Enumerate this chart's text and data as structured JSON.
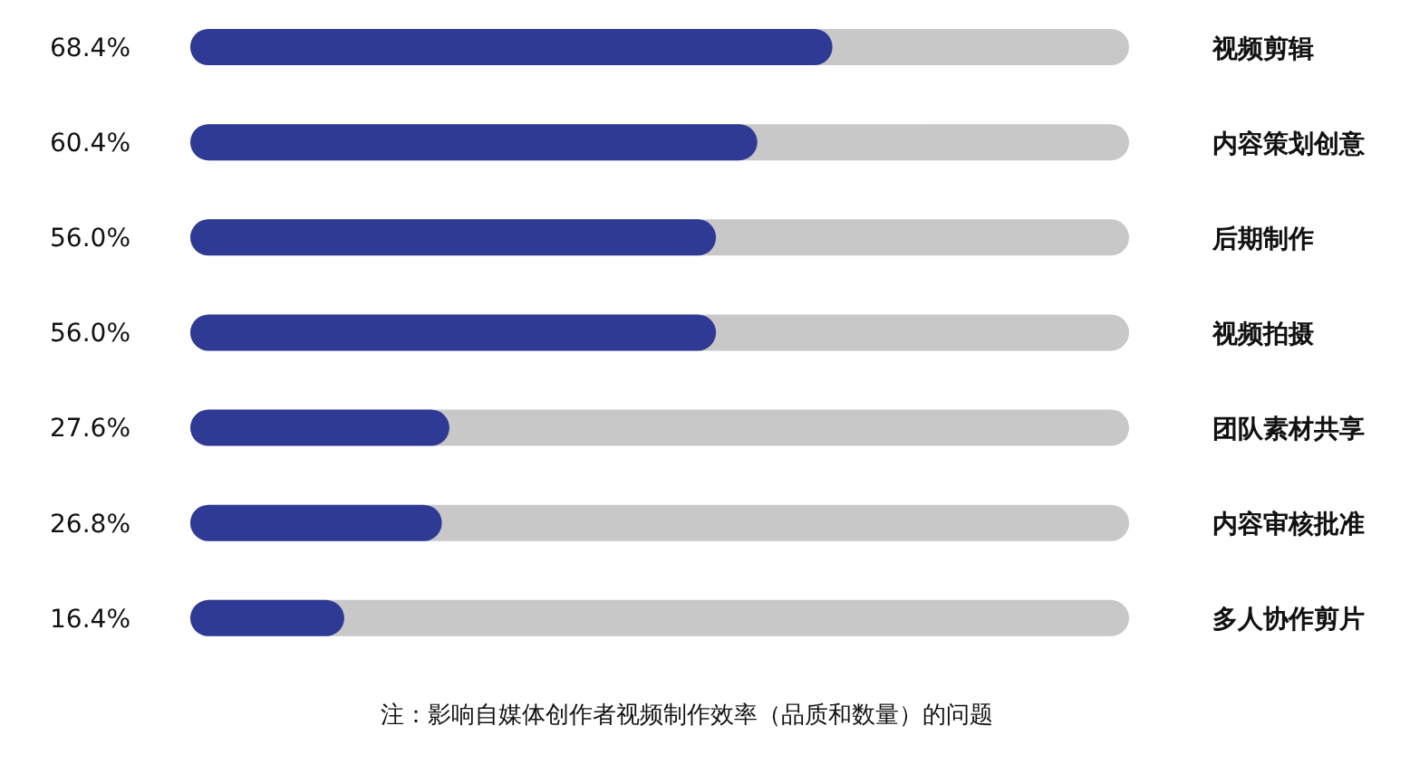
{
  "chart_data": {
    "type": "bar",
    "orientation": "horizontal",
    "categories": [
      "视频剪辑",
      "内容策划创意",
      "后期制作",
      "视频拍摄",
      "团队素材共享",
      "内容审核批准",
      "多人协作剪片"
    ],
    "values": [
      68.4,
      60.4,
      56.0,
      56.0,
      27.6,
      26.8,
      16.4
    ],
    "value_labels": [
      "68.4%",
      "60.4%",
      "56.0%",
      "56.0%",
      "27.6%",
      "26.8%",
      "16.4%"
    ],
    "color": "#2e3a94",
    "xlim": [
      0,
      100
    ],
    "tick_labels": "y",
    "annotations": [
      "注：影响自媒体创作者视频制作效率（品质和数量）的问题"
    ]
  }
}
